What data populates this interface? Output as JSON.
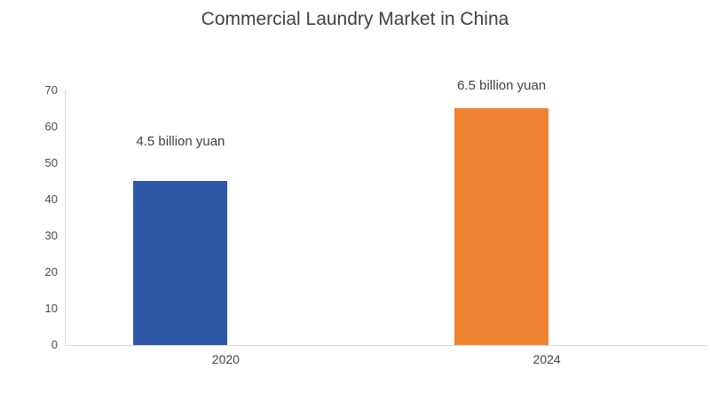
{
  "chart_data": {
    "type": "bar",
    "title": "Commercial Laundry Market in China",
    "categories": [
      "2020",
      "2024"
    ],
    "values": [
      45,
      65
    ],
    "bar_labels": [
      "4.5 billion yuan",
      "6.5 billion yuan"
    ],
    "bar_colors": [
      "#2e58a5",
      "#ef8332"
    ],
    "xlabel": "",
    "ylabel": "",
    "ylim": [
      0,
      70
    ],
    "yticks": [
      0,
      10,
      20,
      30,
      40,
      50,
      60,
      70
    ],
    "grid": false,
    "legend": false,
    "axis_line_color": "#d9d9d9",
    "title_color": "#3f3f46",
    "tick_label_color": "#4a4a4a",
    "data_label_color": "#404040"
  }
}
